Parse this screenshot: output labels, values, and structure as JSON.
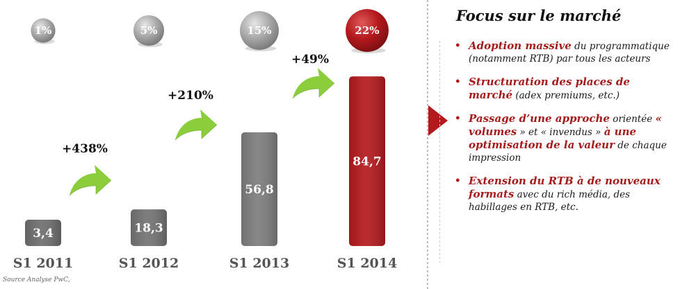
{
  "chart_data": {
    "type": "bar",
    "title": "",
    "xlabel": "",
    "ylabel": "",
    "ylim": [
      0,
      100
    ],
    "categories": [
      "S1 2011",
      "S1 2012",
      "S1 2013",
      "S1 2014"
    ],
    "values": [
      3.4,
      18.3,
      56.8,
      84.7
    ],
    "value_labels": [
      "3,4",
      "18,3",
      "56,8",
      "84,7"
    ],
    "growth_labels": [
      "+438%",
      "+210%",
      "+49%"
    ],
    "share_labels": [
      "1%",
      "5%",
      "15%",
      "22%"
    ],
    "share_values": [
      1,
      5,
      15,
      22
    ],
    "bar_colors": [
      "#6e6e6e",
      "#737373",
      "#7d7d7d",
      "#b3191d"
    ],
    "growth_arrow_color": "#8ccd3c",
    "highlight_color": "#b3191d"
  },
  "source": "Source Analyse PwC,",
  "panel": {
    "title": "Focus sur le marché",
    "bullets": [
      {
        "hl": "Adoption massive",
        "rest": " du programmatique (notamment RTB) par tous les acteurs"
      },
      {
        "hl": "Structuration des places de marché",
        "rest": " (adex premiums, etc.)"
      },
      {
        "hl": "Passage d’une approche",
        "rest1": " orientée ",
        "hl2": "« volumes",
        "rest2": " » et « invendus » ",
        "hl3": "à une optimisation de la valeur",
        "rest3": " de chaque impression"
      },
      {
        "hl": "Extension du RTB à de nouveaux formats",
        "rest": " avec du rich média, des habillages en RTB, etc."
      }
    ]
  }
}
